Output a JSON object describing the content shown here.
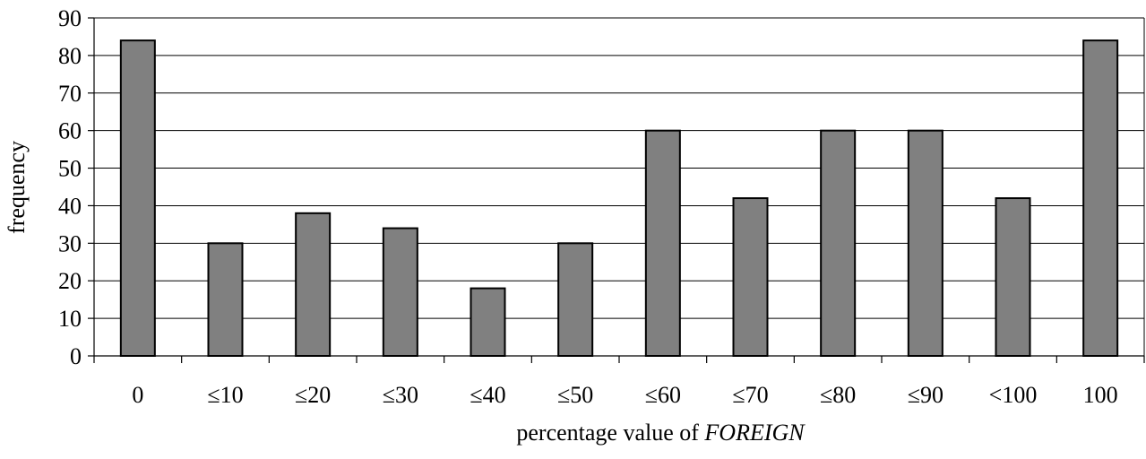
{
  "chart_data": {
    "type": "bar",
    "categories": [
      "0",
      "≤10",
      "≤20",
      "≤30",
      "≤40",
      "≤50",
      "≤60",
      "≤70",
      "≤80",
      "≤90",
      "<100",
      "100"
    ],
    "values": [
      84,
      30,
      38,
      34,
      18,
      30,
      60,
      42,
      60,
      60,
      42,
      84
    ],
    "xlabel": {
      "prefix": "percentage value of ",
      "emphasis": "FOREIGN"
    },
    "ylabel": "frequency",
    "ylim": [
      0,
      90
    ],
    "yticks": [
      0,
      10,
      20,
      30,
      40,
      50,
      60,
      70,
      80,
      90
    ],
    "grid": true,
    "legend": "none",
    "bar_color": "#808080",
    "bar_edge_color": "#000000",
    "grid_color": "#000000"
  }
}
